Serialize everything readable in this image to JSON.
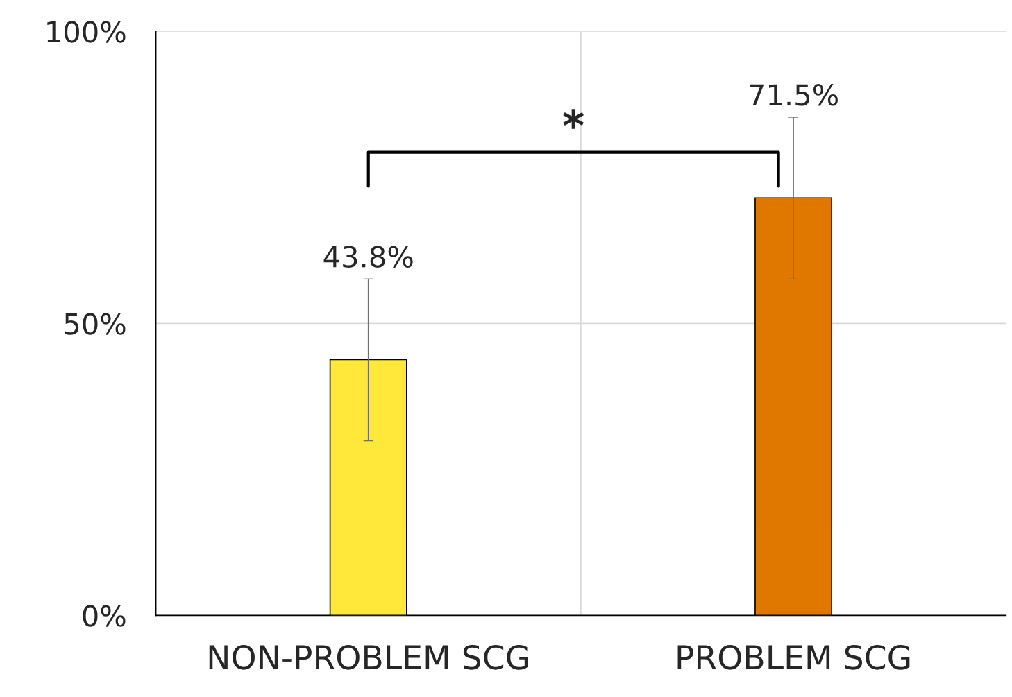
{
  "chart_data": {
    "type": "bar",
    "categories": [
      "NON-PROBLEM SCG",
      "PROBLEM SCG"
    ],
    "values": [
      43.8,
      71.5
    ],
    "colors": [
      "#ffe83a",
      "#e07800"
    ],
    "errors": [
      [
        29.9,
        57.6
      ],
      [
        57.6,
        85.3
      ]
    ],
    "value_labels": [
      "43.8%",
      "71.5%"
    ],
    "ylim": [
      0,
      100
    ],
    "yticks": [
      {
        "value": 0,
        "label": "0%"
      },
      {
        "value": 50,
        "label": "50%"
      },
      {
        "value": 100,
        "label": "100%"
      }
    ],
    "grid": true,
    "annotations": [
      "*"
    ]
  }
}
